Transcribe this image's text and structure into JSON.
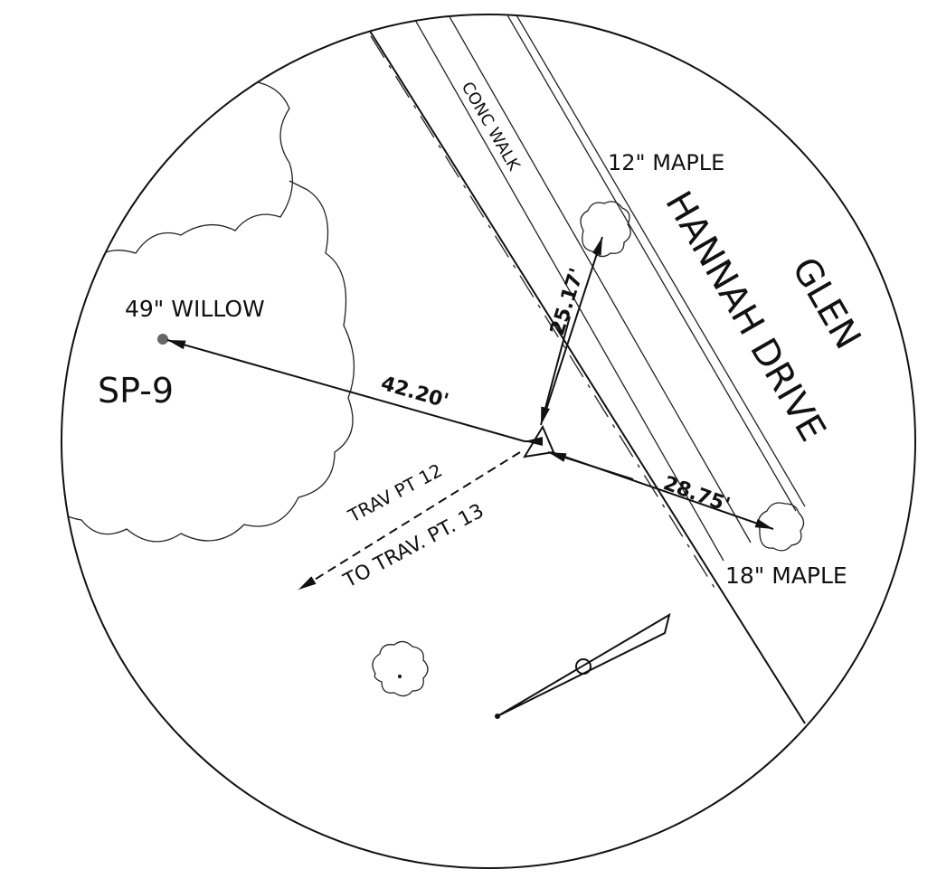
{
  "labels": {
    "maple_12": "12\" MAPLE",
    "street_glen": "GLEN",
    "street_hannah": "HANNAH DRIVE",
    "walk": "CONC WALK",
    "willow": "49\" WILLOW",
    "sp": "SP-9",
    "dist_willow": "42.20'",
    "dist_maple_12": "25.17'",
    "dist_maple_18": "28.75'",
    "trav_pt": "TRAV PT 12",
    "to_trav": "TO TRAV. PT. 13",
    "maple_18": "18\" MAPLE"
  }
}
